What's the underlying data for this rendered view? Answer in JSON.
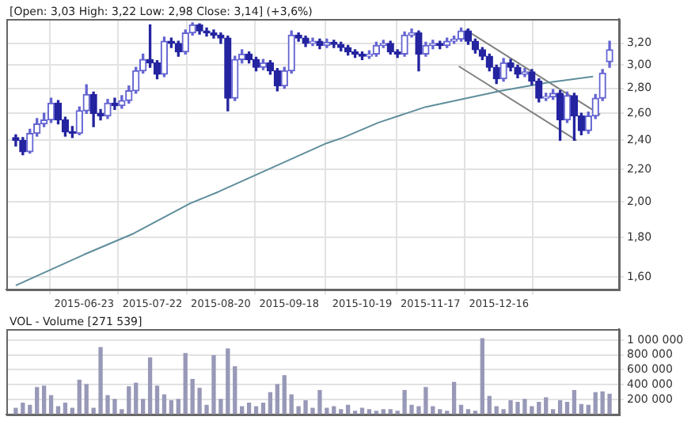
{
  "chart_data": [
    {
      "type": "candlestick",
      "title": "[Open: 3,03 High: 3,22 Low: 2,98 Close: 3,14] (+3,6%)",
      "colors": [
        "#2424a0",
        "#2424a0",
        "#6464d2",
        "#6464d2",
        "#6464d2",
        "#6464d2",
        "#2424a0",
        "#2424a0",
        "#2424a0",
        "#6464d2",
        "#6464d2",
        "#2424a0",
        "#2424a0",
        "#6464d2",
        "#2424a0",
        "#6464d2",
        "#6464d2",
        "#6464d2",
        "#6464d2",
        "#2424a0",
        "#2424a0",
        "#6464d2",
        "#2424a0",
        "#2424a0",
        "#6464d2",
        "#6464d2",
        "#2424a0",
        "#2424a0",
        "#2424a0",
        "#2424a0",
        "#2424a0",
        "#6464d2",
        "#6464d2",
        "#2424a0",
        "#2424a0",
        "#6464d2",
        "#2424a0",
        "#2424a0",
        "#6464d2",
        "#6464d2",
        "#2424a0",
        "#2424a0",
        "#6464d2",
        "#2424a0",
        "#6464d2",
        "#2424a0",
        "#2424a0",
        "#2424a0",
        "#2424a0",
        "#2424a0",
        "#6464d2",
        "#6464d2",
        "#6464d2",
        "#2424a0",
        "#2424a0",
        "#6464d2",
        "#6464d2",
        "#2424a0",
        "#6464d2",
        "#6464d2",
        "#2424a0",
        "#6464d2",
        "#6464d2",
        "#6464d2",
        "#2424a0",
        "#2424a0",
        "#2424a0",
        "#2424a0",
        "#2424a0",
        "#6464d2",
        "#2424a0",
        "#2424a0",
        "#6464d2",
        "#2424a0",
        "#2424a0",
        "#6464d2",
        "#6464d2",
        "#2424a0",
        "#6464d2",
        "#2424a0",
        "#2424a0",
        "#6464d2",
        "#6464d2",
        "#6464d2",
        "#6464d2"
      ],
      "x": [
        "2015-05-25",
        "2015-05-28",
        "2015-05-31",
        "2015-06-03",
        "2015-06-06",
        "2015-06-09",
        "2015-06-12",
        "2015-06-15",
        "2015-06-18",
        "2015-06-21",
        "2015-06-24",
        "2015-06-27",
        "2015-06-30",
        "2015-07-03",
        "2015-07-06",
        "2015-07-09",
        "2015-07-12",
        "2015-07-15",
        "2015-07-18",
        "2015-07-21",
        "2015-07-24",
        "2015-07-27",
        "2015-07-30",
        "2015-08-02",
        "2015-08-05",
        "2015-08-08",
        "2015-08-11",
        "2015-08-14",
        "2015-08-17",
        "2015-08-20",
        "2015-08-23",
        "2015-08-26",
        "2015-08-29",
        "2015-09-01",
        "2015-09-04",
        "2015-09-07",
        "2015-09-10",
        "2015-09-13",
        "2015-09-16",
        "2015-09-19",
        "2015-09-22",
        "2015-09-25",
        "2015-09-28",
        "2015-10-01",
        "2015-10-04",
        "2015-10-07",
        "2015-10-10",
        "2015-10-13",
        "2015-10-16",
        "2015-10-19",
        "2015-10-22",
        "2015-10-25",
        "2015-10-28",
        "2015-10-31",
        "2015-11-03",
        "2015-11-06",
        "2015-11-09",
        "2015-11-12",
        "2015-11-15",
        "2015-11-18",
        "2015-11-21",
        "2015-11-24",
        "2015-11-27",
        "2015-11-30",
        "2015-12-03",
        "2015-12-06",
        "2015-12-09",
        "2015-12-12",
        "2015-12-15",
        "2015-12-18",
        "2015-12-21",
        "2015-12-24",
        "2015-12-27",
        "2015-12-30",
        "2016-01-02",
        "2016-01-05",
        "2016-01-08",
        "2016-01-11",
        "2016-01-14",
        "2016-01-17",
        "2016-01-20",
        "2016-01-23",
        "2016-01-26",
        "2016-01-29",
        "2016-02-01"
      ],
      "ohlc": [
        [
          2.42,
          2.44,
          2.36,
          2.4
        ],
        [
          2.4,
          2.42,
          2.3,
          2.32
        ],
        [
          2.32,
          2.48,
          2.31,
          2.45
        ],
        [
          2.45,
          2.56,
          2.43,
          2.52
        ],
        [
          2.52,
          2.6,
          2.5,
          2.55
        ],
        [
          2.55,
          2.72,
          2.53,
          2.68
        ],
        [
          2.68,
          2.7,
          2.52,
          2.55
        ],
        [
          2.55,
          2.57,
          2.43,
          2.46
        ],
        [
          2.46,
          2.5,
          2.42,
          2.45
        ],
        [
          2.45,
          2.65,
          2.44,
          2.62
        ],
        [
          2.62,
          2.83,
          2.6,
          2.75
        ],
        [
          2.75,
          2.77,
          2.5,
          2.6
        ],
        [
          2.6,
          2.63,
          2.55,
          2.58
        ],
        [
          2.58,
          2.71,
          2.56,
          2.68
        ],
        [
          2.68,
          2.72,
          2.63,
          2.66
        ],
        [
          2.66,
          2.74,
          2.64,
          2.7
        ],
        [
          2.7,
          2.82,
          2.68,
          2.78
        ],
        [
          2.78,
          2.98,
          2.76,
          2.95
        ],
        [
          2.95,
          3.1,
          2.93,
          3.05
        ],
        [
          3.05,
          3.38,
          2.98,
          3.02
        ],
        [
          3.02,
          3.04,
          2.88,
          2.92
        ],
        [
          2.92,
          3.26,
          2.9,
          3.22
        ],
        [
          3.22,
          3.25,
          3.16,
          3.2
        ],
        [
          3.2,
          3.22,
          3.08,
          3.12
        ],
        [
          3.12,
          3.33,
          3.1,
          3.3
        ],
        [
          3.3,
          3.4,
          3.28,
          3.38
        ],
        [
          3.38,
          3.39,
          3.29,
          3.32
        ],
        [
          3.32,
          3.35,
          3.27,
          3.3
        ],
        [
          3.3,
          3.33,
          3.25,
          3.28
        ],
        [
          3.28,
          3.3,
          3.2,
          3.25
        ],
        [
          3.25,
          3.27,
          2.62,
          2.72
        ],
        [
          2.72,
          3.08,
          2.7,
          3.05
        ],
        [
          3.05,
          3.14,
          3.02,
          3.1
        ],
        [
          3.1,
          3.12,
          3.02,
          3.05
        ],
        [
          3.05,
          3.07,
          2.95,
          2.98
        ],
        [
          2.98,
          3.05,
          2.96,
          3.02
        ],
        [
          3.02,
          3.04,
          2.92,
          2.95
        ],
        [
          2.95,
          2.97,
          2.78,
          2.82
        ],
        [
          2.82,
          2.98,
          2.8,
          2.95
        ],
        [
          2.95,
          3.32,
          2.93,
          3.28
        ],
        [
          3.28,
          3.3,
          3.22,
          3.25
        ],
        [
          3.25,
          3.27,
          3.17,
          3.2
        ],
        [
          3.2,
          3.25,
          3.18,
          3.22
        ],
        [
          3.22,
          3.24,
          3.15,
          3.18
        ],
        [
          3.18,
          3.24,
          3.16,
          3.21
        ],
        [
          3.21,
          3.23,
          3.16,
          3.19
        ],
        [
          3.19,
          3.21,
          3.13,
          3.16
        ],
        [
          3.16,
          3.18,
          3.09,
          3.12
        ],
        [
          3.12,
          3.14,
          3.07,
          3.1
        ],
        [
          3.1,
          3.12,
          3.05,
          3.08
        ],
        [
          3.08,
          3.13,
          3.06,
          3.1
        ],
        [
          3.1,
          3.21,
          3.08,
          3.18
        ],
        [
          3.18,
          3.23,
          3.16,
          3.2
        ],
        [
          3.2,
          3.22,
          3.1,
          3.12
        ],
        [
          3.12,
          3.14,
          3.07,
          3.1
        ],
        [
          3.1,
          3.31,
          3.08,
          3.28
        ],
        [
          3.28,
          3.34,
          3.26,
          3.3
        ],
        [
          3.3,
          3.32,
          2.95,
          3.1
        ],
        [
          3.1,
          3.21,
          3.08,
          3.18
        ],
        [
          3.18,
          3.23,
          3.15,
          3.2
        ],
        [
          3.2,
          3.22,
          3.15,
          3.18
        ],
        [
          3.18,
          3.25,
          3.16,
          3.22
        ],
        [
          3.22,
          3.27,
          3.2,
          3.24
        ],
        [
          3.24,
          3.35,
          3.22,
          3.32
        ],
        [
          3.32,
          3.34,
          3.19,
          3.22
        ],
        [
          3.22,
          3.24,
          3.11,
          3.14
        ],
        [
          3.14,
          3.16,
          3.05,
          3.08
        ],
        [
          3.08,
          3.1,
          2.95,
          2.98
        ],
        [
          2.98,
          3.0,
          2.84,
          2.88
        ],
        [
          2.88,
          3.06,
          2.86,
          3.02
        ],
        [
          3.02,
          3.05,
          2.95,
          2.98
        ],
        [
          2.98,
          3.0,
          2.89,
          2.92
        ],
        [
          2.92,
          2.97,
          2.9,
          2.94
        ],
        [
          2.94,
          2.96,
          2.83,
          2.86
        ],
        [
          2.86,
          2.88,
          2.69,
          2.72
        ],
        [
          2.72,
          2.76,
          2.7,
          2.73
        ],
        [
          2.73,
          2.79,
          2.71,
          2.76
        ],
        [
          2.76,
          2.78,
          2.4,
          2.55
        ],
        [
          2.55,
          2.77,
          2.53,
          2.74
        ],
        [
          2.74,
          2.76,
          2.4,
          2.58
        ],
        [
          2.58,
          2.6,
          2.44,
          2.47
        ],
        [
          2.47,
          2.61,
          2.45,
          2.58
        ],
        [
          2.58,
          2.75,
          2.56,
          2.72
        ],
        [
          2.72,
          2.96,
          2.7,
          2.93
        ],
        [
          3.03,
          3.22,
          2.98,
          3.14
        ]
      ],
      "series": [
        {
          "type": "line",
          "color": "#5f8e9c",
          "x": [
            "2015-05-25",
            "2015-06-23",
            "2015-07-14",
            "2015-08-07",
            "2015-08-19",
            "2015-10-04",
            "2015-10-11",
            "2015-10-26",
            "2015-11-15",
            "2015-12-17",
            "2016-01-06",
            "2016-01-25"
          ],
          "values": [
            1.56,
            1.71,
            1.82,
            1.99,
            2.06,
            2.38,
            2.42,
            2.53,
            2.65,
            2.78,
            2.85,
            2.9
          ]
        },
        {
          "type": "line",
          "color": "#808080",
          "x": [
            "2015-12-02",
            "2016-01-28"
          ],
          "values": [
            3.33,
            2.59
          ]
        },
        {
          "type": "line",
          "color": "#808080",
          "x": [
            "2015-11-29",
            "2016-01-18"
          ],
          "values": [
            2.99,
            2.4
          ]
        }
      ],
      "xlim": [
        "2015-05-21",
        "2016-02-05"
      ],
      "xticks": [
        "2015-06-23",
        "2015-07-22",
        "2015-08-20",
        "2015-09-18",
        "2015-10-19",
        "2015-11-17",
        "2015-12-16"
      ],
      "ylim": [
        1.54,
        3.44
      ],
      "yticks": [
        {
          "value": 1.6,
          "label": "1,60"
        },
        {
          "value": 1.8,
          "label": "1,80"
        },
        {
          "value": 2.0,
          "label": "2,00"
        },
        {
          "value": 2.2,
          "label": "2,20"
        },
        {
          "value": 2.4,
          "label": "2,40"
        },
        {
          "value": 2.6,
          "label": "2,60"
        },
        {
          "value": 2.8,
          "label": "2,80"
        },
        {
          "value": 3.0,
          "label": "3,00"
        },
        {
          "value": 3.2,
          "label": "3,20"
        }
      ],
      "log": true,
      "grid": true
    },
    {
      "type": "bar",
      "title": "VOL - Volume [271 539]",
      "color": "#9898b8",
      "x": [
        "2015-05-25",
        "2015-05-28",
        "2015-05-31",
        "2015-06-03",
        "2015-06-06",
        "2015-06-09",
        "2015-06-12",
        "2015-06-15",
        "2015-06-18",
        "2015-06-21",
        "2015-06-24",
        "2015-06-27",
        "2015-06-30",
        "2015-07-03",
        "2015-07-06",
        "2015-07-09",
        "2015-07-12",
        "2015-07-15",
        "2015-07-18",
        "2015-07-21",
        "2015-07-24",
        "2015-07-27",
        "2015-07-30",
        "2015-08-02",
        "2015-08-05",
        "2015-08-08",
        "2015-08-11",
        "2015-08-14",
        "2015-08-17",
        "2015-08-20",
        "2015-08-23",
        "2015-08-26",
        "2015-08-29",
        "2015-09-01",
        "2015-09-04",
        "2015-09-07",
        "2015-09-10",
        "2015-09-13",
        "2015-09-16",
        "2015-09-19",
        "2015-09-22",
        "2015-09-25",
        "2015-09-28",
        "2015-10-01",
        "2015-10-04",
        "2015-10-07",
        "2015-10-10",
        "2015-10-13",
        "2015-10-16",
        "2015-10-19",
        "2015-10-22",
        "2015-10-25",
        "2015-10-28",
        "2015-10-31",
        "2015-11-03",
        "2015-11-06",
        "2015-11-09",
        "2015-11-12",
        "2015-11-15",
        "2015-11-18",
        "2015-11-21",
        "2015-11-24",
        "2015-11-27",
        "2015-11-30",
        "2015-12-03",
        "2015-12-06",
        "2015-12-09",
        "2015-12-12",
        "2015-12-15",
        "2015-12-18",
        "2015-12-21",
        "2015-12-24",
        "2015-12-27",
        "2015-12-30",
        "2016-01-02",
        "2016-01-05",
        "2016-01-08",
        "2016-01-11",
        "2016-01-14",
        "2016-01-17",
        "2016-01-20",
        "2016-01-23",
        "2016-01-26",
        "2016-01-29",
        "2016-02-01"
      ],
      "values": [
        80000,
        150000,
        120000,
        360000,
        380000,
        250000,
        100000,
        150000,
        80000,
        460000,
        400000,
        80000,
        900000,
        250000,
        200000,
        60000,
        370000,
        420000,
        200000,
        760000,
        380000,
        260000,
        180000,
        200000,
        820000,
        470000,
        350000,
        120000,
        790000,
        200000,
        880000,
        640000,
        100000,
        150000,
        100000,
        150000,
        290000,
        400000,
        520000,
        260000,
        100000,
        180000,
        80000,
        320000,
        80000,
        100000,
        60000,
        120000,
        40000,
        80000,
        60000,
        40000,
        60000,
        60000,
        40000,
        320000,
        120000,
        100000,
        360000,
        100000,
        60000,
        40000,
        430000,
        120000,
        60000,
        40000,
        1020000,
        240000,
        100000,
        60000,
        180000,
        160000,
        200000,
        100000,
        160000,
        220000,
        60000,
        180000,
        160000,
        320000,
        130000,
        120000,
        290000,
        300000,
        270000
      ],
      "xlim": [
        "2015-05-21",
        "2016-02-05"
      ],
      "ylim": [
        0,
        1150000
      ],
      "yticks": [
        {
          "value": 200000,
          "label": "200 000"
        },
        {
          "value": 400000,
          "label": "400 000"
        },
        {
          "value": 600000,
          "label": "600 000"
        },
        {
          "value": 800000,
          "label": "800 000"
        },
        {
          "value": 1000000,
          "label": "1 000 000"
        }
      ],
      "grid": true,
      "tick_labels": "y"
    }
  ]
}
